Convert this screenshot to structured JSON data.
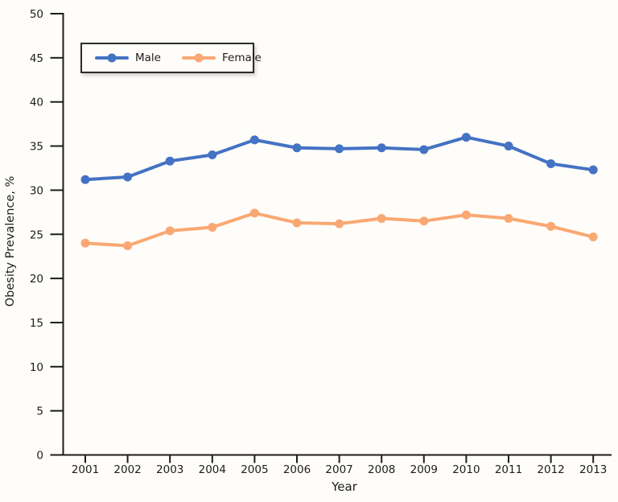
{
  "chart_data": {
    "type": "line",
    "title": "",
    "xlabel": "Year",
    "ylabel": "Obesity Prevalence, %",
    "x": [
      2001,
      2002,
      2003,
      2004,
      2005,
      2006,
      2007,
      2008,
      2009,
      2010,
      2011,
      2012,
      2013
    ],
    "series": [
      {
        "name": "Male",
        "color": "#4472C4",
        "values": [
          31.2,
          31.5,
          33.3,
          34.0,
          35.7,
          34.8,
          34.7,
          34.8,
          34.6,
          36.0,
          35.0,
          33.0,
          32.3
        ]
      },
      {
        "name": "Female",
        "color": "#F9A873",
        "values": [
          24.0,
          23.7,
          25.4,
          25.8,
          27.4,
          26.3,
          26.2,
          26.8,
          26.5,
          27.2,
          26.8,
          25.9,
          24.7
        ]
      }
    ],
    "ylim": [
      0,
      50
    ],
    "yticks": [
      0,
      5,
      10,
      15,
      20,
      25,
      30,
      35,
      40,
      45,
      50
    ],
    "grid": false,
    "legend_position": "top-left-inside",
    "axis_color": "#1c1c1c",
    "background_color": "#fffdf9"
  }
}
